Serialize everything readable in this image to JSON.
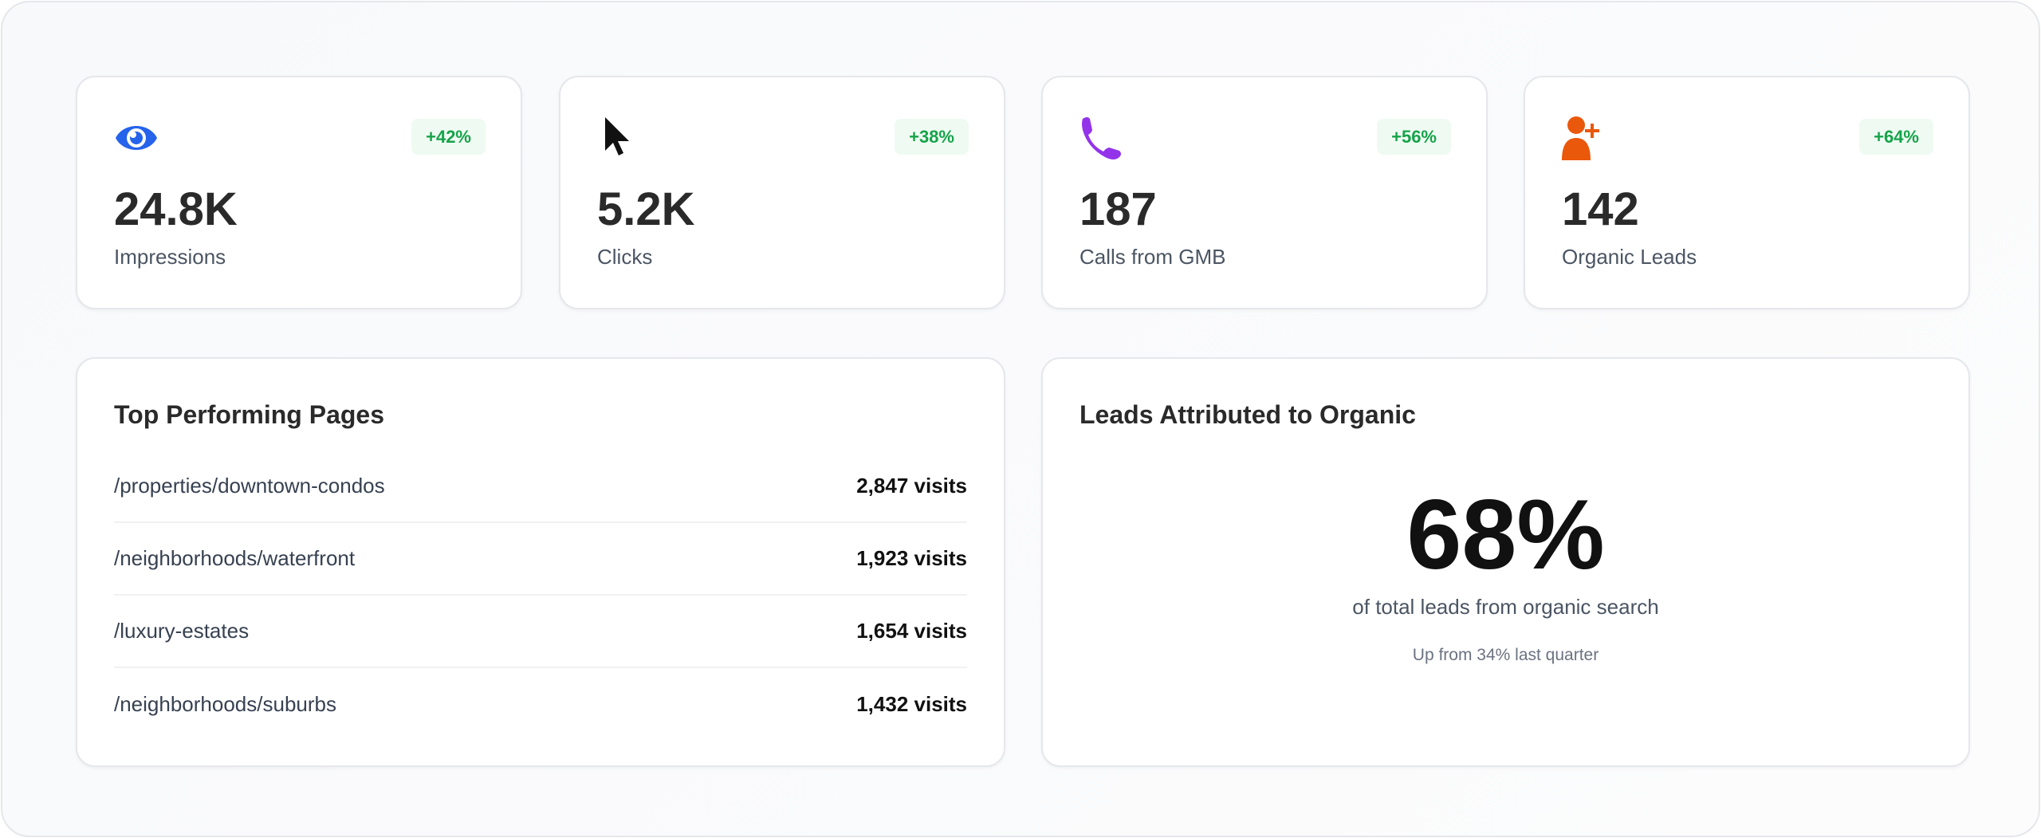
{
  "stats": [
    {
      "icon": "eye-icon",
      "color": "#2563eb",
      "badge": "+42%",
      "value": "24.8K",
      "label": "Impressions"
    },
    {
      "icon": "cursor-icon",
      "color": "#111111",
      "badge": "+38%",
      "value": "5.2K",
      "label": "Clicks"
    },
    {
      "icon": "phone-icon",
      "color": "#9333ea",
      "badge": "+56%",
      "value": "187",
      "label": "Calls from GMB"
    },
    {
      "icon": "user-plus-icon",
      "color": "#ea580c",
      "badge": "+64%",
      "value": "142",
      "label": "Organic Leads"
    }
  ],
  "pages": {
    "title": "Top Performing Pages",
    "rows": [
      {
        "path": "/properties/downtown-condos",
        "visits": "2,847 visits"
      },
      {
        "path": "/neighborhoods/waterfront",
        "visits": "1,923 visits"
      },
      {
        "path": "/luxury-estates",
        "visits": "1,654 visits"
      },
      {
        "path": "/neighborhoods/suburbs",
        "visits": "1,432 visits"
      }
    ]
  },
  "organic": {
    "title": "Leads Attributed to Organic",
    "value": "68%",
    "caption": "of total leads from organic search",
    "note": "Up from 34% last quarter"
  },
  "colors": {
    "badge_text": "#16a34a",
    "badge_bg": "#effbf2"
  }
}
